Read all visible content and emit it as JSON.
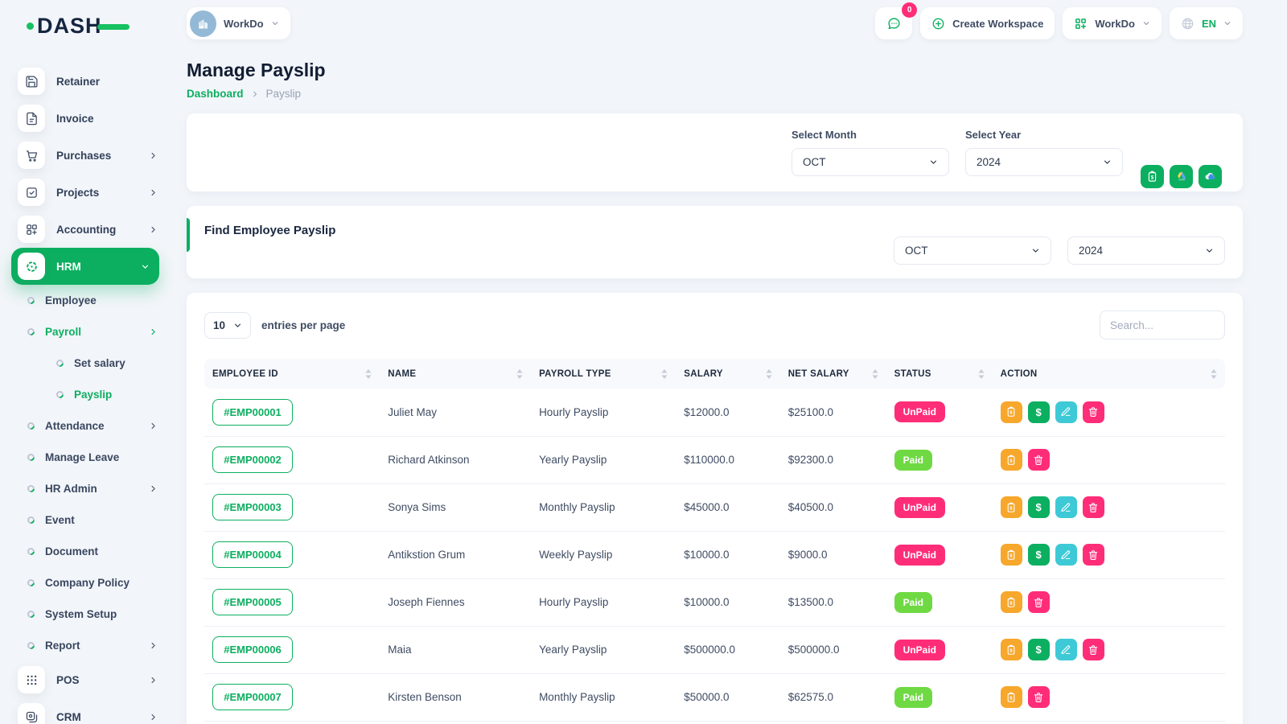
{
  "brand": {
    "logo_text": "DASH"
  },
  "topbar": {
    "workspace_label": "WorkDo",
    "messenger_badge": "0",
    "create_workspace_label": "Create Workspace",
    "workdo_menu_label": "WorkDo",
    "language_label": "EN",
    "icons": [
      "chat-icon",
      "plus-circle-icon",
      "app-grid-icon",
      "globe-icon",
      "building-icon"
    ]
  },
  "sidebar": {
    "items": [
      {
        "level": 1,
        "label": "Retainer",
        "icon": "retainer-icon"
      },
      {
        "level": 1,
        "label": "Invoice",
        "icon": "invoice-icon"
      },
      {
        "level": 1,
        "label": "Purchases",
        "icon": "purchases-icon",
        "chevron": "right"
      },
      {
        "level": 1,
        "label": "Projects",
        "icon": "projects-icon",
        "chevron": "right"
      },
      {
        "level": 1,
        "label": "Accounting",
        "icon": "accounting-icon",
        "chevron": "right"
      },
      {
        "level": 1,
        "label": "HRM",
        "icon": "hrm-icon",
        "chevron": "down",
        "active": true
      },
      {
        "level": 2,
        "label": "Employee"
      },
      {
        "level": 2,
        "label": "Payroll",
        "chevron": "right",
        "active": true
      },
      {
        "level": 3,
        "label": "Set salary"
      },
      {
        "level": 3,
        "label": "Payslip",
        "active": true
      },
      {
        "level": 2,
        "label": "Attendance",
        "chevron": "right"
      },
      {
        "level": 2,
        "label": "Manage Leave"
      },
      {
        "level": 2,
        "label": "HR Admin",
        "chevron": "right"
      },
      {
        "level": 2,
        "label": "Event"
      },
      {
        "level": 2,
        "label": "Document"
      },
      {
        "level": 2,
        "label": "Company Policy"
      },
      {
        "level": 2,
        "label": "System Setup"
      },
      {
        "level": 2,
        "label": "Report",
        "chevron": "right"
      },
      {
        "level": 1,
        "label": "POS",
        "icon": "pos-icon",
        "chevron": "right"
      },
      {
        "level": 1,
        "label": "CRM",
        "icon": "crm-icon",
        "chevron": "right"
      }
    ]
  },
  "page": {
    "title": "Manage Payslip",
    "breadcrumb_home": "Dashboard",
    "breadcrumb_current": "Payslip"
  },
  "filter_card": {
    "month_label": "Select Month",
    "month_value": "OCT",
    "year_label": "Select Year",
    "year_value": "2024",
    "export_buttons": [
      {
        "name": "bulk-payment-button",
        "icon": "clipboard-dollar-icon"
      },
      {
        "name": "export-drive-button",
        "icon": "google-drive-icon"
      },
      {
        "name": "export-cloud-button",
        "icon": "cloud-icon"
      }
    ]
  },
  "find_card": {
    "title": "Find Employee Payslip",
    "month_value": "OCT",
    "year_value": "2024"
  },
  "table": {
    "entries_value": "10",
    "entries_label": "entries per page",
    "search_placeholder": "Search...",
    "columns": [
      "EMPLOYEE ID",
      "NAME",
      "PAYROLL TYPE",
      "SALARY",
      "NET SALARY",
      "STATUS",
      "ACTION"
    ],
    "rows": [
      {
        "id": "#EMP00001",
        "name": "Juliet May",
        "type": "Hourly Payslip",
        "salary": "$12000.0",
        "net": "$25100.0",
        "status": "UnPaid",
        "actions": [
          "payslip",
          "pay",
          "edit",
          "delete"
        ]
      },
      {
        "id": "#EMP00002",
        "name": "Richard Atkinson",
        "type": "Yearly Payslip",
        "salary": "$110000.0",
        "net": "$92300.0",
        "status": "Paid",
        "actions": [
          "payslip",
          "delete"
        ]
      },
      {
        "id": "#EMP00003",
        "name": "Sonya Sims",
        "type": "Monthly Payslip",
        "salary": "$45000.0",
        "net": "$40500.0",
        "status": "UnPaid",
        "actions": [
          "payslip",
          "pay",
          "edit",
          "delete"
        ]
      },
      {
        "id": "#EMP00004",
        "name": "Antikstion Grum",
        "type": "Weekly Payslip",
        "salary": "$10000.0",
        "net": "$9000.0",
        "status": "UnPaid",
        "actions": [
          "payslip",
          "pay",
          "edit",
          "delete"
        ]
      },
      {
        "id": "#EMP00005",
        "name": "Joseph Fiennes",
        "type": "Hourly Payslip",
        "salary": "$10000.0",
        "net": "$13500.0",
        "status": "Paid",
        "actions": [
          "payslip",
          "delete"
        ]
      },
      {
        "id": "#EMP00006",
        "name": "Maia",
        "type": "Yearly Payslip",
        "salary": "$500000.0",
        "net": "$500000.0",
        "status": "UnPaid",
        "actions": [
          "payslip",
          "pay",
          "edit",
          "delete"
        ]
      },
      {
        "id": "#EMP00007",
        "name": "Kirsten Benson",
        "type": "Monthly Payslip",
        "salary": "$50000.0",
        "net": "$62575.0",
        "status": "Paid",
        "actions": [
          "payslip",
          "delete"
        ]
      }
    ],
    "action_icons": {
      "payslip": "clipboard-dollar-icon",
      "pay": "dollar-icon",
      "edit": "pencil-icon",
      "delete": "trash-icon"
    }
  },
  "colors": {
    "primary": "#0caf60",
    "status_unpaid": "#ff2d78",
    "status_paid": "#6fd943",
    "action_payslip": "#f7a72b",
    "action_pay": "#0caf60",
    "action_edit": "#3ec9d6",
    "action_delete": "#ff2d78"
  }
}
